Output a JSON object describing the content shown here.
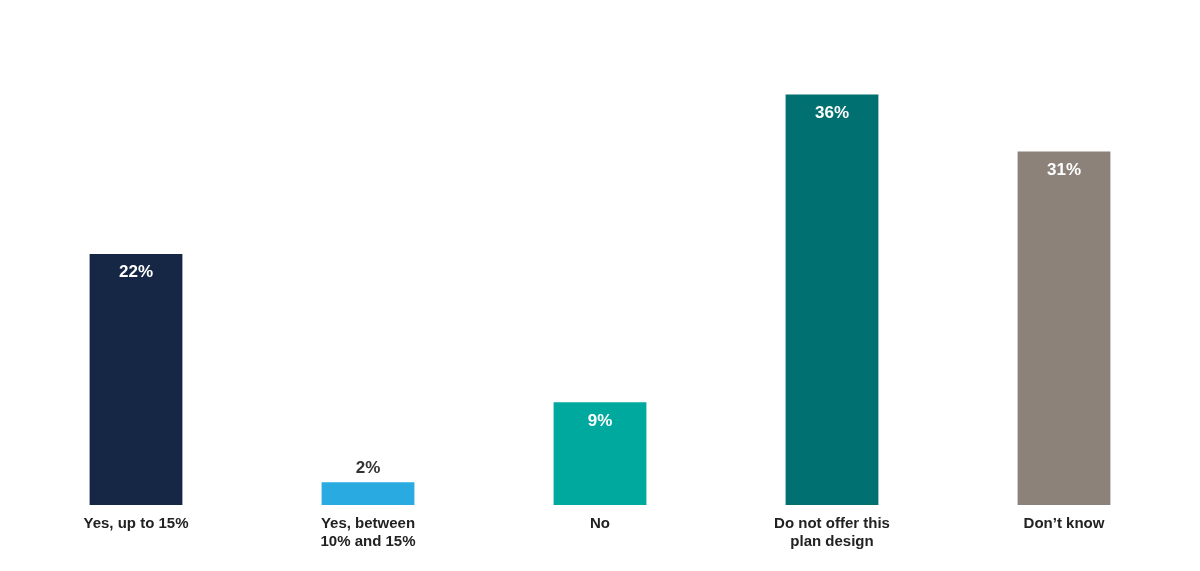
{
  "chart_data": {
    "type": "bar",
    "categories": [
      "Yes, up to 15%",
      "Yes, between\n10% and 15%",
      "No",
      "Do not offer this\nplan design",
      "Don’t know"
    ],
    "values": [
      22,
      2,
      9,
      36,
      31
    ],
    "value_labels": [
      "22%",
      "2%",
      "9%",
      "36%",
      "31%"
    ],
    "colors": [
      "#152744",
      "#29ABE2",
      "#00A99D",
      "#007070",
      "#8C8279"
    ],
    "ylim": [
      0,
      42
    ],
    "grid": false,
    "data_labels": true,
    "tick_labels": "x"
  }
}
